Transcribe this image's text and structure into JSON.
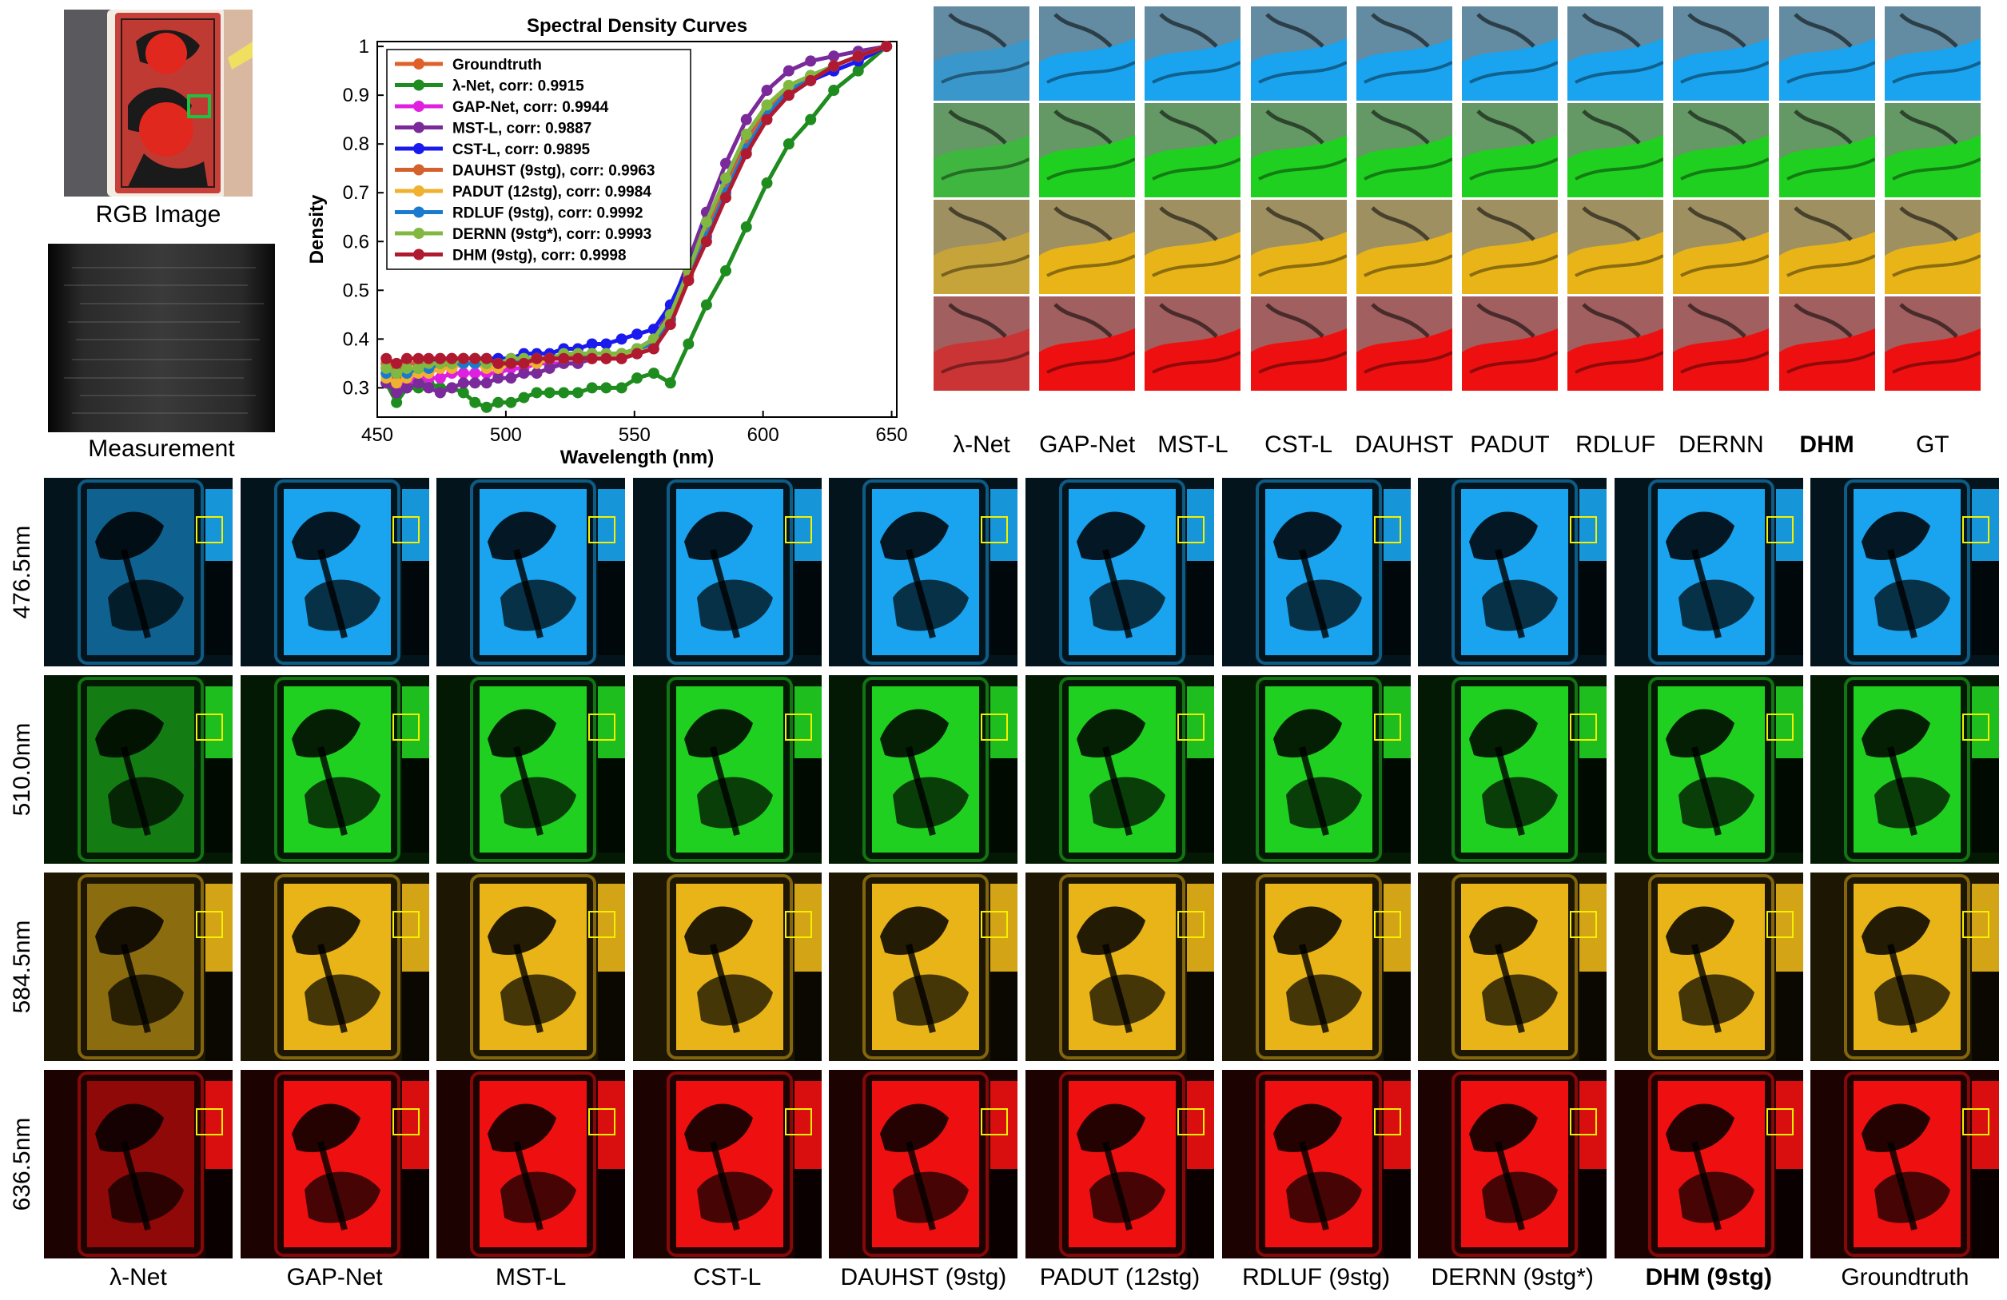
{
  "figure": {
    "rgb_caption": "RGB Image",
    "measurement_caption": "Measurement",
    "crop_methods": [
      {
        "label": "λ-Net",
        "bold": false
      },
      {
        "label": "GAP-Net",
        "bold": false
      },
      {
        "label": "MST-L",
        "bold": false
      },
      {
        "label": "CST-L",
        "bold": false
      },
      {
        "label": "DAUHST",
        "bold": false
      },
      {
        "label": "PADUT",
        "bold": false
      },
      {
        "label": "RDLUF",
        "bold": false
      },
      {
        "label": "DERNN",
        "bold": false
      },
      {
        "label": "DHM",
        "bold": true
      },
      {
        "label": "GT",
        "bold": false
      }
    ],
    "grid_methods": [
      {
        "label": "λ-Net",
        "bold": false
      },
      {
        "label": "GAP-Net",
        "bold": false
      },
      {
        "label": "MST-L",
        "bold": false
      },
      {
        "label": "CST-L",
        "bold": false
      },
      {
        "label": "DAUHST (9stg)",
        "bold": false
      },
      {
        "label": "PADUT (12stg)",
        "bold": false
      },
      {
        "label": "RDLUF (9stg)",
        "bold": false
      },
      {
        "label": "DERNN (9stg*)",
        "bold": false
      },
      {
        "label": "DHM (9stg)",
        "bold": true
      },
      {
        "label": "Groundtruth",
        "bold": false
      }
    ],
    "bands": [
      {
        "label": "476.5nm",
        "color": "#1aa3ee"
      },
      {
        "label": "510.0nm",
        "color": "#20d020"
      },
      {
        "label": "584.5nm",
        "color": "#e8b418"
      },
      {
        "label": "636.5nm",
        "color": "#ee1010"
      }
    ]
  },
  "chart_data": {
    "type": "line",
    "title": "Spectral Density Curves",
    "xlabel": "Wavelength (nm)",
    "ylabel": "Density",
    "xlim": [
      450,
      652
    ],
    "ylim": [
      0.24,
      1.01
    ],
    "xticks": [
      "450",
      "500",
      "550",
      "600",
      "650"
    ],
    "yticks": [
      "0.3",
      "0.4",
      "0.5",
      "0.6",
      "0.7",
      "0.8",
      "0.9",
      "1"
    ],
    "legend_position": "top-left",
    "x": [
      453.5,
      457.5,
      461.5,
      466,
      470,
      474.5,
      479,
      483.5,
      488,
      492.5,
      497,
      502,
      507,
      512,
      517,
      522.5,
      528,
      533.5,
      539,
      545,
      551,
      557.5,
      564,
      571,
      578,
      585.5,
      593.5,
      601.5,
      610,
      618.5,
      627.5,
      637,
      648
    ],
    "series": [
      {
        "name": "Groundtruth",
        "color": "#e0602a",
        "values": [
          0.33,
          0.32,
          0.33,
          0.33,
          0.34,
          0.34,
          0.35,
          0.35,
          0.35,
          0.34,
          0.34,
          0.35,
          0.35,
          0.35,
          0.36,
          0.36,
          0.36,
          0.36,
          0.36,
          0.36,
          0.37,
          0.39,
          0.44,
          0.52,
          0.61,
          0.7,
          0.79,
          0.86,
          0.91,
          0.94,
          0.96,
          0.98,
          1.0
        ]
      },
      {
        "name": "λ-Net, corr: 0.9915",
        "color": "#1e8c1e",
        "values": [
          0.31,
          0.27,
          0.3,
          0.3,
          0.31,
          0.3,
          0.3,
          0.29,
          0.27,
          0.26,
          0.27,
          0.27,
          0.28,
          0.29,
          0.29,
          0.29,
          0.29,
          0.3,
          0.3,
          0.3,
          0.32,
          0.33,
          0.31,
          0.39,
          0.47,
          0.54,
          0.63,
          0.72,
          0.8,
          0.85,
          0.91,
          0.95,
          1.0
        ]
      },
      {
        "name": "GAP-Net, corr: 0.9944",
        "color": "#e020e0",
        "values": [
          0.31,
          0.3,
          0.31,
          0.32,
          0.32,
          0.32,
          0.33,
          0.33,
          0.33,
          0.33,
          0.33,
          0.34,
          0.34,
          0.35,
          0.35,
          0.35,
          0.35,
          0.36,
          0.36,
          0.36,
          0.37,
          0.39,
          0.45,
          0.54,
          0.64,
          0.73,
          0.81,
          0.87,
          0.91,
          0.93,
          0.95,
          0.97,
          1.0
        ]
      },
      {
        "name": "MST-L, corr: 0.9887",
        "color": "#7a2a9a",
        "values": [
          0.31,
          0.29,
          0.3,
          0.31,
          0.3,
          0.29,
          0.3,
          0.31,
          0.31,
          0.31,
          0.32,
          0.32,
          0.33,
          0.33,
          0.34,
          0.35,
          0.35,
          0.36,
          0.36,
          0.37,
          0.38,
          0.4,
          0.46,
          0.56,
          0.66,
          0.76,
          0.85,
          0.91,
          0.95,
          0.97,
          0.98,
          0.99,
          1.0
        ]
      },
      {
        "name": "CST-L, corr: 0.9895",
        "color": "#1a1aee",
        "values": [
          0.34,
          0.34,
          0.35,
          0.35,
          0.35,
          0.36,
          0.36,
          0.36,
          0.36,
          0.36,
          0.36,
          0.36,
          0.37,
          0.37,
          0.37,
          0.38,
          0.38,
          0.39,
          0.39,
          0.4,
          0.41,
          0.42,
          0.47,
          0.55,
          0.63,
          0.72,
          0.8,
          0.86,
          0.9,
          0.93,
          0.95,
          0.97,
          1.0
        ]
      },
      {
        "name": "DAUHST (9stg), corr: 0.9963",
        "color": "#d4602c",
        "values": [
          0.35,
          0.34,
          0.35,
          0.35,
          0.35,
          0.35,
          0.36,
          0.36,
          0.36,
          0.35,
          0.35,
          0.35,
          0.36,
          0.36,
          0.36,
          0.36,
          0.37,
          0.37,
          0.37,
          0.37,
          0.38,
          0.4,
          0.45,
          0.53,
          0.62,
          0.71,
          0.8,
          0.87,
          0.91,
          0.94,
          0.96,
          0.98,
          1.0
        ]
      },
      {
        "name": "PADUT (12stg), corr: 0.9984",
        "color": "#f0b030",
        "values": [
          0.32,
          0.31,
          0.32,
          0.33,
          0.33,
          0.34,
          0.34,
          0.35,
          0.35,
          0.34,
          0.34,
          0.35,
          0.35,
          0.35,
          0.36,
          0.36,
          0.36,
          0.36,
          0.36,
          0.37,
          0.37,
          0.39,
          0.44,
          0.52,
          0.61,
          0.7,
          0.79,
          0.86,
          0.91,
          0.94,
          0.96,
          0.98,
          1.0
        ]
      },
      {
        "name": "RDLUF (9stg), corr: 0.9992",
        "color": "#1a7ad0",
        "values": [
          0.33,
          0.33,
          0.33,
          0.34,
          0.34,
          0.35,
          0.35,
          0.35,
          0.35,
          0.35,
          0.35,
          0.35,
          0.36,
          0.36,
          0.36,
          0.36,
          0.36,
          0.37,
          0.37,
          0.37,
          0.38,
          0.39,
          0.44,
          0.52,
          0.61,
          0.7,
          0.79,
          0.86,
          0.91,
          0.94,
          0.96,
          0.98,
          1.0
        ]
      },
      {
        "name": "DERNN (9stg*), corr: 0.9993",
        "color": "#80b840",
        "values": [
          0.34,
          0.33,
          0.34,
          0.34,
          0.35,
          0.35,
          0.35,
          0.36,
          0.36,
          0.35,
          0.35,
          0.36,
          0.36,
          0.36,
          0.36,
          0.37,
          0.37,
          0.37,
          0.37,
          0.37,
          0.38,
          0.4,
          0.45,
          0.54,
          0.64,
          0.73,
          0.82,
          0.88,
          0.92,
          0.94,
          0.96,
          0.98,
          1.0
        ]
      },
      {
        "name": "DHM (9stg), corr: 0.9998",
        "color": "#b01a30",
        "values": [
          0.36,
          0.35,
          0.36,
          0.36,
          0.36,
          0.36,
          0.36,
          0.36,
          0.36,
          0.36,
          0.35,
          0.35,
          0.35,
          0.36,
          0.36,
          0.36,
          0.36,
          0.36,
          0.36,
          0.36,
          0.37,
          0.38,
          0.43,
          0.52,
          0.6,
          0.69,
          0.78,
          0.85,
          0.9,
          0.93,
          0.96,
          0.98,
          1.0
        ]
      }
    ]
  }
}
